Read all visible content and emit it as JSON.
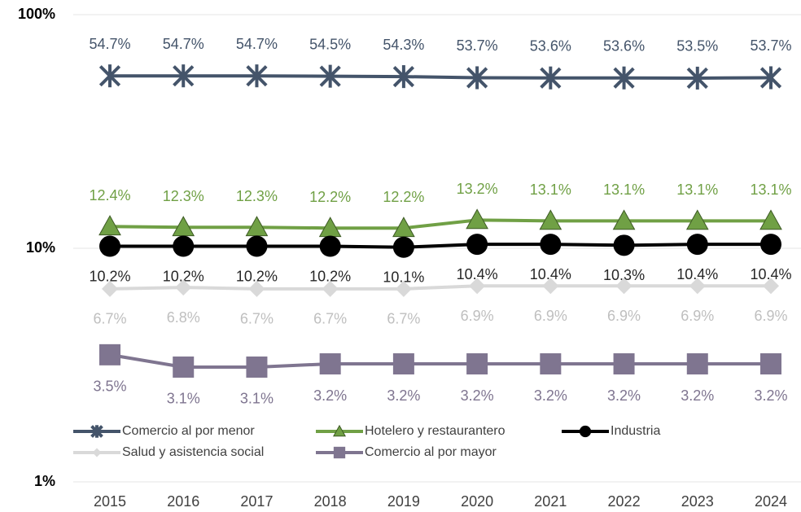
{
  "chart_data": {
    "type": "line",
    "log_scale": true,
    "grid": true,
    "legend": "bottom",
    "categories": [
      "2015",
      "2016",
      "2017",
      "2018",
      "2019",
      "2020",
      "2021",
      "2022",
      "2023",
      "2024"
    ],
    "ylim": [
      1,
      100
    ],
    "yticks": [
      {
        "value": 1,
        "label": "1%"
      },
      {
        "value": 10,
        "label": "10%"
      },
      {
        "value": 100,
        "label": "100%"
      }
    ],
    "series": [
      {
        "name": "Comercio al por menor",
        "color": "#44546a",
        "marker": "x",
        "values": [
          54.7,
          54.7,
          54.7,
          54.5,
          54.3,
          53.7,
          53.6,
          53.6,
          53.5,
          53.7
        ],
        "value_labels": [
          "54.7%",
          "54.7%",
          "54.7%",
          "54.5%",
          "54.3%",
          "53.7%",
          "53.6%",
          "53.6%",
          "53.5%",
          "53.7%"
        ]
      },
      {
        "name": "Hotelero y restaurantero",
        "color": "#70a045",
        "marker": "triangle",
        "values": [
          12.4,
          12.3,
          12.3,
          12.2,
          12.2,
          13.2,
          13.1,
          13.1,
          13.1,
          13.1
        ],
        "value_labels": [
          "12.4%",
          "12.3%",
          "12.3%",
          "12.2%",
          "12.2%",
          "13.2%",
          "13.1%",
          "13.1%",
          "13.1%",
          "13.1%"
        ]
      },
      {
        "name": "Industria",
        "color": "#000000",
        "marker": "circle",
        "values": [
          10.2,
          10.2,
          10.2,
          10.2,
          10.1,
          10.4,
          10.4,
          10.3,
          10.4,
          10.4
        ],
        "value_labels": [
          "10.2%",
          "10.2%",
          "10.2%",
          "10.2%",
          "10.1%",
          "10.4%",
          "10.4%",
          "10.3%",
          "10.4%",
          "10.4%"
        ]
      },
      {
        "name": "Salud y asistencia social",
        "color": "#d9d9d9",
        "marker": "diamond",
        "values": [
          6.7,
          6.8,
          6.7,
          6.7,
          6.7,
          6.9,
          6.9,
          6.9,
          6.9,
          6.9
        ],
        "value_labels": [
          "6.7%",
          "6.8%",
          "6.7%",
          "6.7%",
          "6.7%",
          "6.9%",
          "6.9%",
          "6.9%",
          "6.9%",
          "6.9%"
        ]
      },
      {
        "name": "Comercio al por mayor",
        "color": "#7f7590",
        "marker": "square",
        "values": [
          3.5,
          3.1,
          3.1,
          3.2,
          3.2,
          3.2,
          3.2,
          3.2,
          3.2,
          3.2
        ],
        "value_labels": [
          "3.5%",
          "3.1%",
          "3.1%",
          "3.2%",
          "3.2%",
          "3.2%",
          "3.2%",
          "3.2%",
          "3.2%",
          "3.2%"
        ]
      }
    ]
  }
}
